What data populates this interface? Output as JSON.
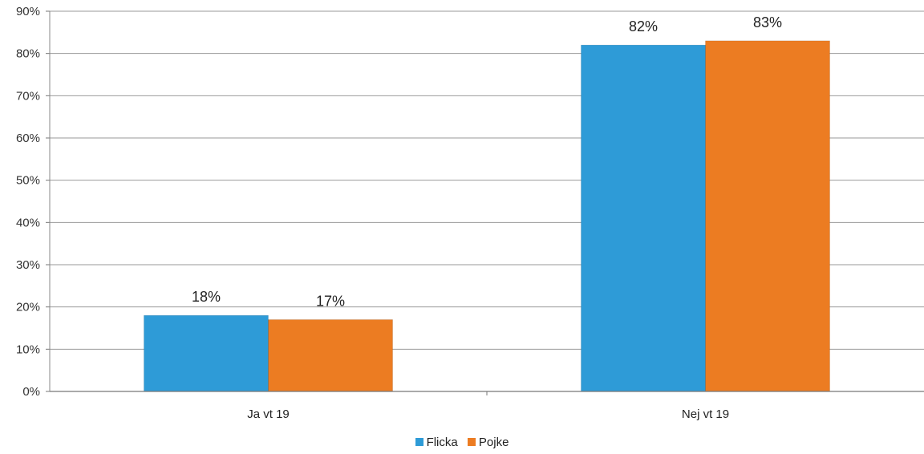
{
  "chart_data": {
    "type": "bar",
    "categories": [
      "Ja vt 19",
      "Nej vt 19"
    ],
    "series": [
      {
        "name": "Flicka",
        "values": [
          18,
          82
        ],
        "labels": [
          "18%",
          "82%"
        ],
        "color": "#2e9bd7"
      },
      {
        "name": "Pojke",
        "values": [
          17,
          83
        ],
        "labels": [
          "17%",
          "83%"
        ],
        "color": "#ec7c22"
      }
    ],
    "y_ticks": [
      "0%",
      "10%",
      "20%",
      "30%",
      "40%",
      "50%",
      "60%",
      "70%",
      "80%",
      "90%"
    ],
    "ylim": [
      0,
      90
    ],
    "y_unit": "percent",
    "grid": true,
    "legend_position": "bottom",
    "title": "",
    "xlabel": "",
    "ylabel": ""
  }
}
